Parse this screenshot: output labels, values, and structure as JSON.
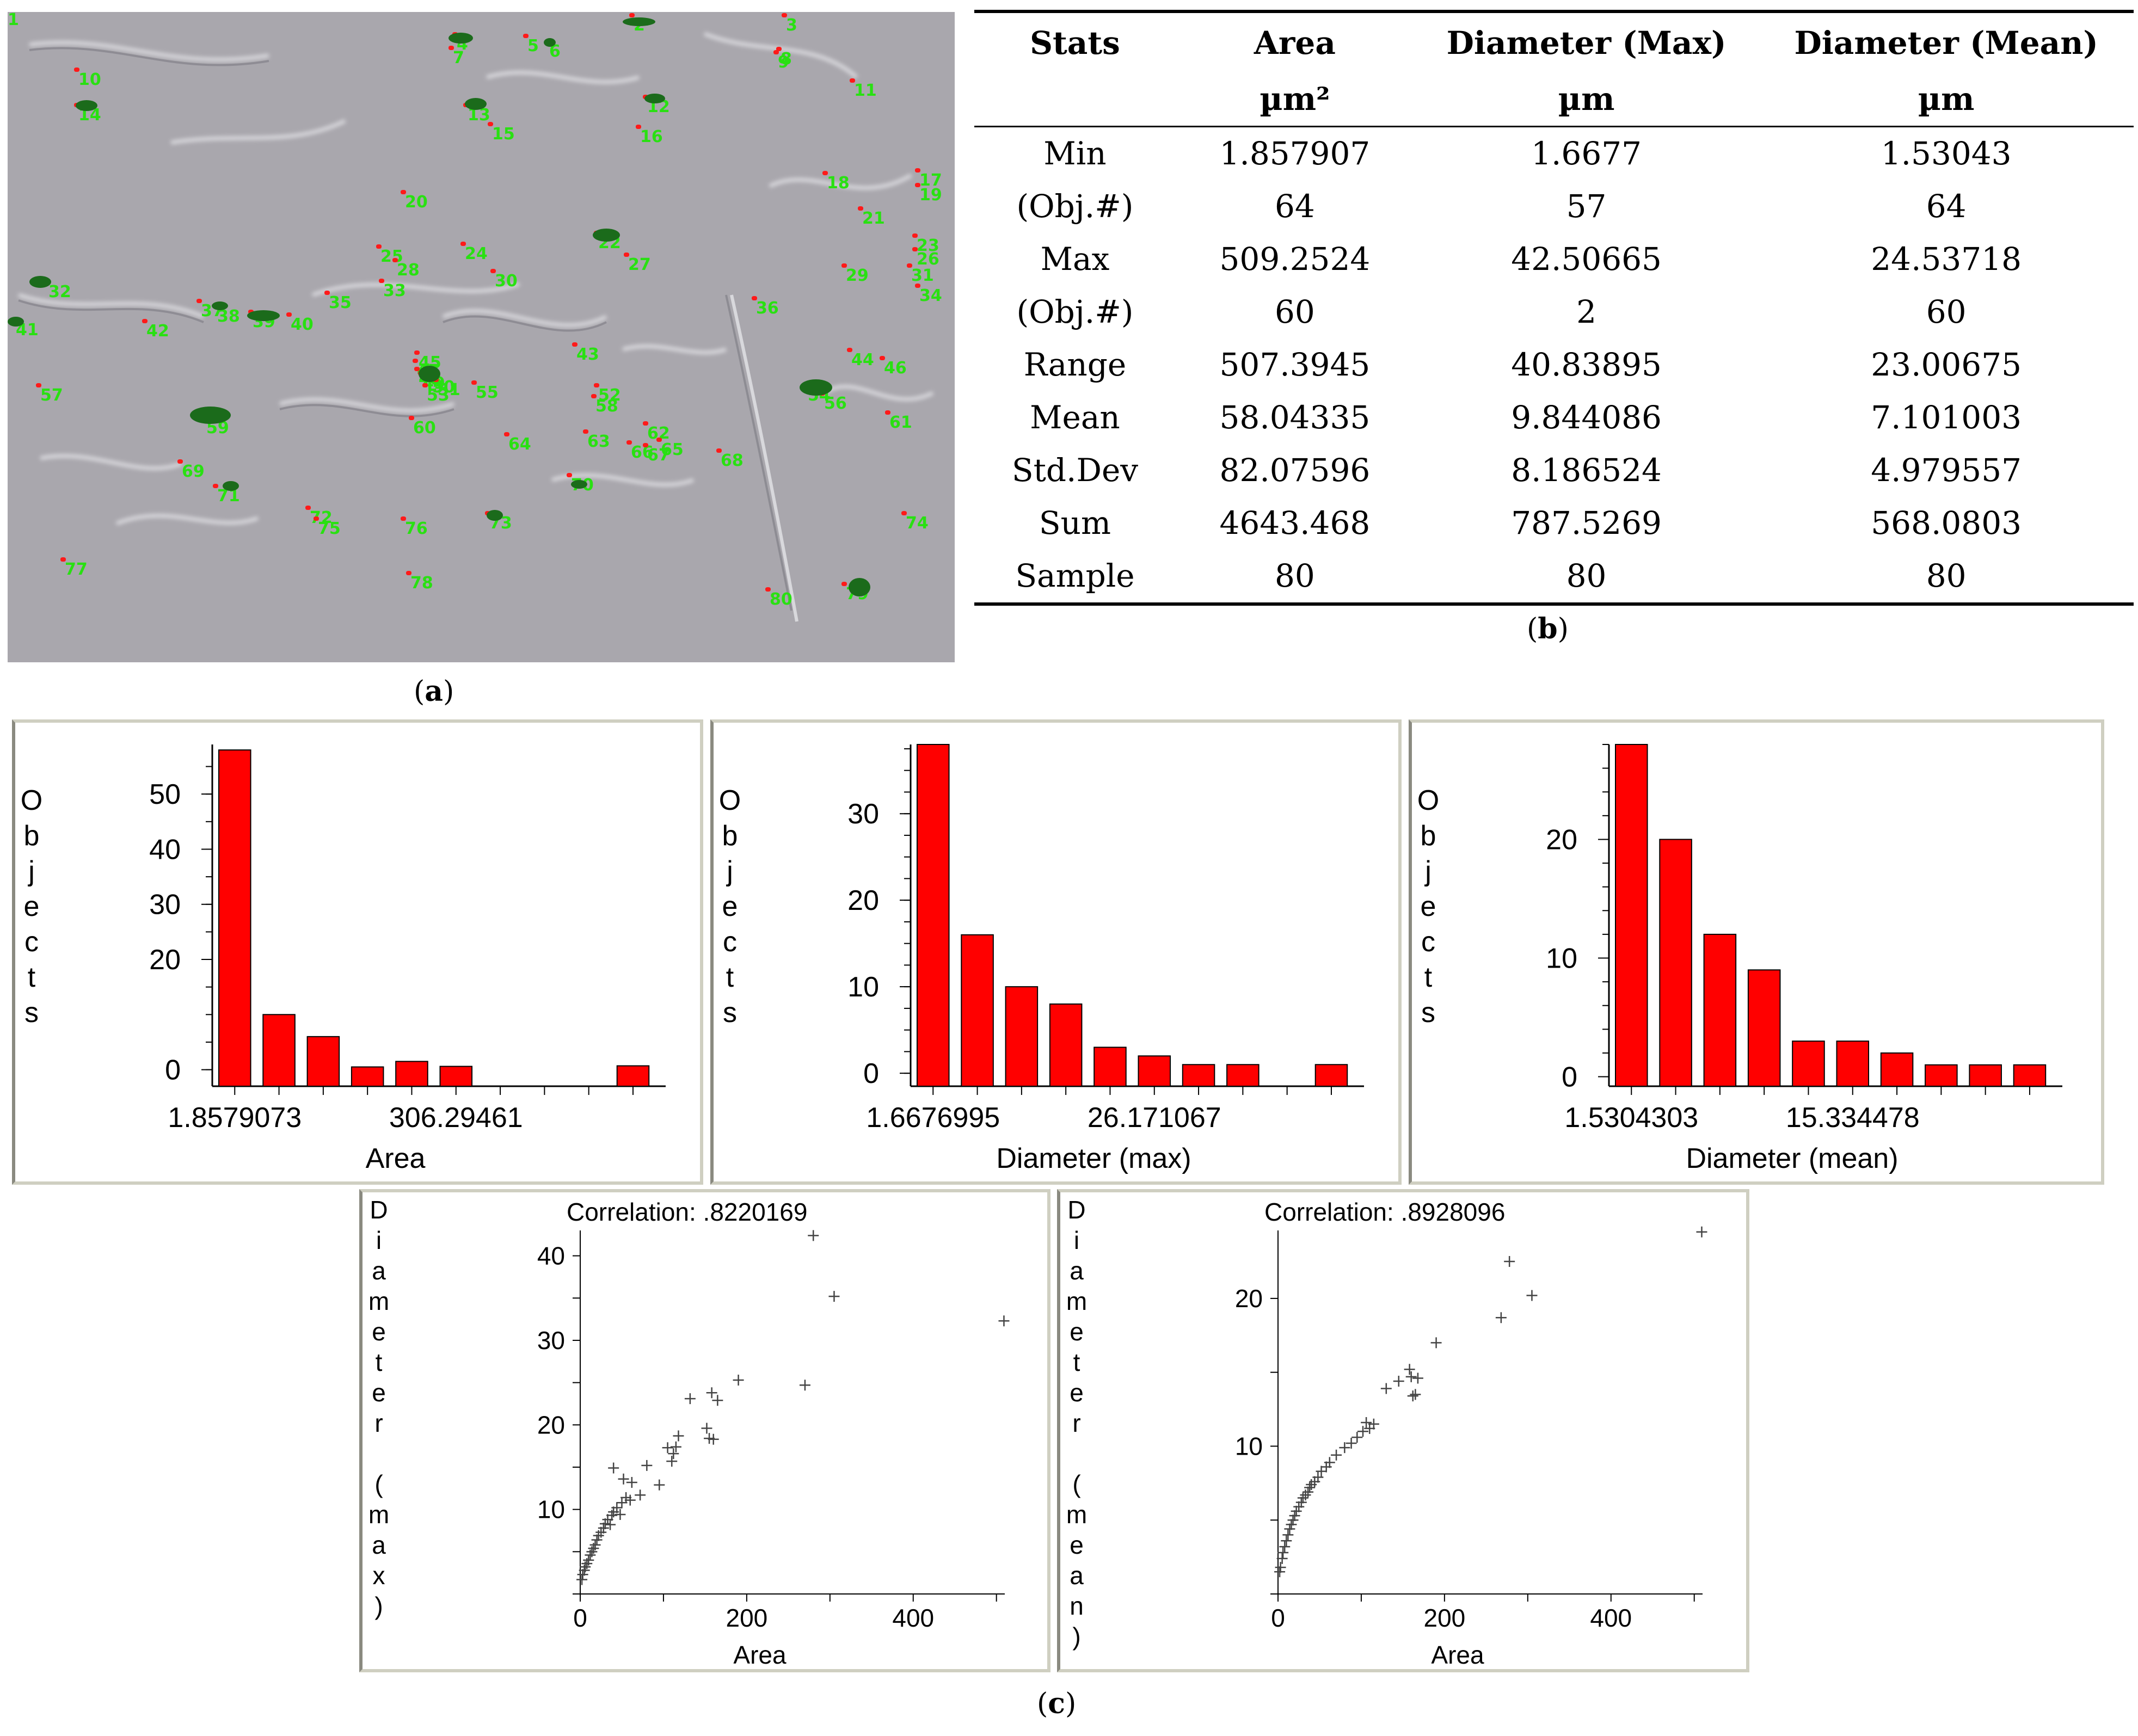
{
  "panel_labels": {
    "a": "a",
    "b": "b",
    "c": "c"
  },
  "micrograph": {
    "object_labels": [
      "1",
      "2",
      "3",
      "4",
      "5",
      "6",
      "7",
      "8",
      "9",
      "10",
      "11",
      "12",
      "13",
      "14",
      "15",
      "16",
      "17",
      "18",
      "19",
      "20",
      "21",
      "22",
      "23",
      "24",
      "25",
      "26",
      "27",
      "28",
      "29",
      "30",
      "31",
      "32",
      "33",
      "34",
      "35",
      "36",
      "37",
      "38",
      "39",
      "40",
      "41",
      "42",
      "43",
      "44",
      "45",
      "46",
      "47",
      "48",
      "49",
      "50",
      "51",
      "52",
      "53",
      "54",
      "55",
      "56",
      "57",
      "58",
      "59",
      "60",
      "61",
      "62",
      "63",
      "64",
      "65",
      "66",
      "67",
      "68",
      "69",
      "70",
      "71",
      "72",
      "73",
      "74",
      "75",
      "76",
      "77",
      "78",
      "79",
      "80"
    ]
  },
  "stats_table": {
    "headers": [
      "Stats",
      "Area",
      "Diameter (Max)",
      "Diameter (Mean)"
    ],
    "units": [
      "",
      "µm²",
      "µm",
      "µm"
    ],
    "rows": [
      [
        "Min",
        "1.857907",
        "1.6677",
        "1.53043"
      ],
      [
        "(Obj.#)",
        "64",
        "57",
        "64"
      ],
      [
        "Max",
        "509.2524",
        "42.50665",
        "24.53718"
      ],
      [
        "(Obj.#)",
        "60",
        "2",
        "60"
      ],
      [
        "Range",
        "507.3945",
        "40.83895",
        "23.00675"
      ],
      [
        "Mean",
        "58.04335",
        "9.844086",
        "7.101003"
      ],
      [
        "Std.Dev",
        "82.07596",
        "8.186524",
        "4.979557"
      ],
      [
        "Sum",
        "4643.468",
        "787.5269",
        "568.0803"
      ],
      [
        "Sample",
        "80",
        "80",
        "80"
      ]
    ]
  },
  "chart_data": [
    {
      "type": "bar",
      "id": "hist-area",
      "xlabel": "Area",
      "ylabel": "Objects",
      "x_tick_labels": [
        "1.8579073",
        "306.29461"
      ],
      "y_ticks": [
        0,
        20,
        30,
        40,
        50
      ],
      "values": [
        58,
        10,
        6,
        0.5,
        1.5,
        0.6,
        0,
        0,
        0,
        0.7
      ],
      "ylim": [
        -3,
        59
      ]
    },
    {
      "type": "bar",
      "id": "hist-dmax",
      "xlabel": "Diameter (max)",
      "ylabel": "Objects",
      "x_tick_labels": [
        "1.6676995",
        "26.171067"
      ],
      "y_ticks": [
        0,
        10,
        20,
        30
      ],
      "values": [
        38,
        16,
        10,
        8,
        3,
        2,
        1,
        1,
        0,
        1
      ],
      "ylim": [
        -1.5,
        38
      ]
    },
    {
      "type": "bar",
      "id": "hist-dmean",
      "xlabel": "Diameter (mean)",
      "ylabel": "Objects",
      "x_tick_labels": [
        "1.5304303",
        "15.334478"
      ],
      "y_ticks": [
        0,
        10,
        20
      ],
      "values": [
        28,
        20,
        12,
        9,
        3,
        3,
        2,
        1,
        1,
        1
      ],
      "ylim": [
        -0.8,
        28
      ]
    },
    {
      "type": "scatter",
      "id": "scatter-dmax",
      "title": "Correlation: .8220169",
      "xlabel": "Area",
      "ylabel": "Diameter (max)",
      "xlim": [
        0,
        510
      ],
      "ylim": [
        0,
        43
      ],
      "x_ticks": [
        0,
        200,
        400
      ],
      "y_ticks": [
        10,
        20,
        30,
        40
      ],
      "points": [
        [
          2,
          1.7
        ],
        [
          3,
          2.3
        ],
        [
          5,
          2.8
        ],
        [
          6,
          3.2
        ],
        [
          8,
          3.6
        ],
        [
          10,
          4
        ],
        [
          12,
          4.6
        ],
        [
          14,
          5
        ],
        [
          16,
          5.4
        ],
        [
          18,
          5.8
        ],
        [
          20,
          6.4
        ],
        [
          22,
          6.9
        ],
        [
          25,
          7.3
        ],
        [
          28,
          7.8
        ],
        [
          30,
          8.3
        ],
        [
          33,
          8.8
        ],
        [
          36,
          8.2
        ],
        [
          38,
          9.3
        ],
        [
          40,
          9.7
        ],
        [
          44,
          10.2
        ],
        [
          48,
          9.4
        ],
        [
          50,
          10.8
        ],
        [
          55,
          11.4
        ],
        [
          60,
          11.1
        ],
        [
          40,
          14.9
        ],
        [
          52,
          13.6
        ],
        [
          62,
          13.2
        ],
        [
          72,
          11.7
        ],
        [
          80,
          15.2
        ],
        [
          95,
          12.9
        ],
        [
          105,
          17.3
        ],
        [
          110,
          15.7
        ],
        [
          112,
          16.6
        ],
        [
          115,
          17.4
        ],
        [
          118,
          18.7
        ],
        [
          132,
          23.1
        ],
        [
          152,
          19.6
        ],
        [
          155,
          18.4
        ],
        [
          158,
          23.8
        ],
        [
          160,
          18.3
        ],
        [
          165,
          22.9
        ],
        [
          190,
          25.3
        ],
        [
          270,
          24.7
        ],
        [
          280,
          42.4
        ],
        [
          305,
          35.2
        ],
        [
          509,
          32.3
        ]
      ]
    },
    {
      "type": "scatter",
      "id": "scatter-dmean",
      "title": "Correlation: .8928096",
      "xlabel": "Area",
      "ylabel": "Diameter (mean)",
      "xlim": [
        0,
        510
      ],
      "ylim": [
        0,
        24.6
      ],
      "x_ticks": [
        0,
        200,
        400
      ],
      "y_ticks": [
        10,
        20
      ],
      "points": [
        [
          2,
          1.5
        ],
        [
          3,
          1.8
        ],
        [
          5,
          2.4
        ],
        [
          6,
          2.8
        ],
        [
          8,
          3.2
        ],
        [
          10,
          3.6
        ],
        [
          12,
          4
        ],
        [
          14,
          4.4
        ],
        [
          16,
          4.7
        ],
        [
          18,
          5
        ],
        [
          20,
          5.3
        ],
        [
          22,
          5.6
        ],
        [
          25,
          5.9
        ],
        [
          28,
          6.2
        ],
        [
          30,
          6.5
        ],
        [
          33,
          6.7
        ],
        [
          36,
          6.9
        ],
        [
          38,
          7.2
        ],
        [
          40,
          7.4
        ],
        [
          44,
          7.6
        ],
        [
          48,
          7.9
        ],
        [
          52,
          8.3
        ],
        [
          58,
          8.6
        ],
        [
          62,
          8.9
        ],
        [
          70,
          9.4
        ],
        [
          80,
          9.9
        ],
        [
          88,
          10.2
        ],
        [
          95,
          10.6
        ],
        [
          102,
          11
        ],
        [
          106,
          11.6
        ],
        [
          110,
          11.2
        ],
        [
          115,
          11.5
        ],
        [
          130,
          13.9
        ],
        [
          145,
          14.4
        ],
        [
          158,
          15.2
        ],
        [
          160,
          14.7
        ],
        [
          162,
          13.4
        ],
        [
          165,
          13.5
        ],
        [
          168,
          14.6
        ],
        [
          190,
          17
        ],
        [
          268,
          18.7
        ],
        [
          278,
          22.5
        ],
        [
          305,
          20.2
        ],
        [
          509,
          24.5
        ]
      ]
    }
  ]
}
